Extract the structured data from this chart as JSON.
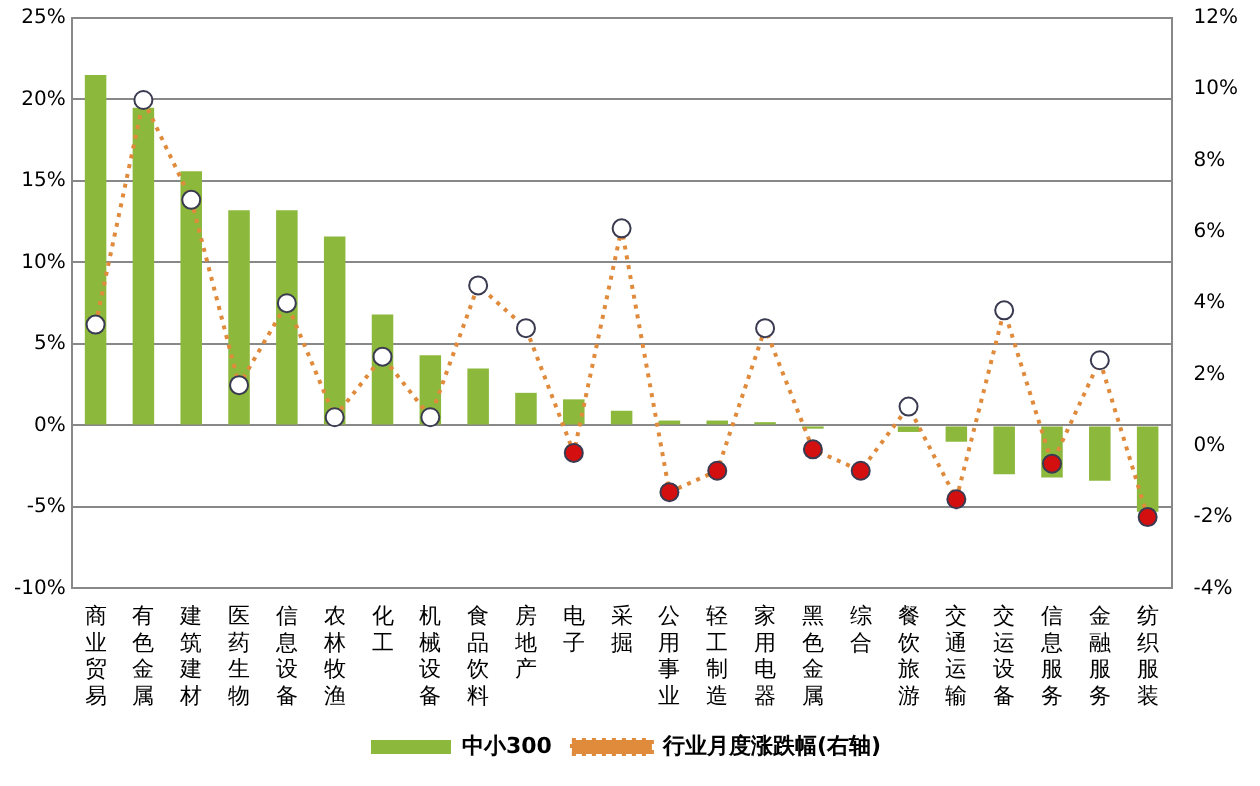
{
  "chart_data": {
    "type": "bar",
    "categories": [
      "商业贸易",
      "有色金属",
      "建筑建材",
      "医药生物",
      "信息设备",
      "农林牧渔",
      "化工",
      "机械设备",
      "食品饮料",
      "房地产",
      "电子",
      "采掘",
      "公用事业",
      "轻工制造",
      "家用电器",
      "黑色金属",
      "综合",
      "餐饮旅游",
      "交通运输",
      "交运设备",
      "信息服务",
      "金融服务",
      "纺织服装"
    ],
    "series": [
      {
        "name": "中小300",
        "color": "#8cb83c",
        "values": [
          21.5,
          19.5,
          15.6,
          13.2,
          13.2,
          11.6,
          6.8,
          4.3,
          3.5,
          2.0,
          1.6,
          0.9,
          0.3,
          0.3,
          0.2,
          -0.2,
          0,
          -0.4,
          -1.0,
          -3.0,
          -3.2,
          -3.4,
          -5.3
        ]
      },
      {
        "name": "行业月度涨跌幅(右轴)",
        "type": "line",
        "axis": "y2",
        "color": "#e08a3c",
        "line_style": "dotted",
        "marker": "circle",
        "colors": [
          "#ffffff",
          "#ffffff",
          "#ffffff",
          "#ffffff",
          "#ffffff",
          "#ffffff",
          "#ffffff",
          "#ffffff",
          "#ffffff",
          "#ffffff",
          "#d40f0f",
          "#ffffff",
          "#d40f0f",
          "#d40f0f",
          "#ffffff",
          "#d40f0f",
          "#d40f0f",
          "#ffffff",
          "#d40f0f",
          "#ffffff",
          "#d40f0f",
          "#ffffff",
          "#d40f0f"
        ],
        "values": [
          3.4,
          9.7,
          6.9,
          1.7,
          4.0,
          0.8,
          2.5,
          0.8,
          4.5,
          3.3,
          -0.2,
          6.1,
          -1.3,
          -0.7,
          3.3,
          -0.1,
          -0.7,
          1.1,
          -1.5,
          3.8,
          -0.5,
          2.4,
          -2.0
        ]
      }
    ],
    "ylim": [
      -10,
      25
    ],
    "yticks": [
      {
        "value": -10,
        "label": "-10%"
      },
      {
        "value": -5,
        "label": "-5%"
      },
      {
        "value": 0,
        "label": "0%"
      },
      {
        "value": 5,
        "label": "5%"
      },
      {
        "value": 10,
        "label": "10%"
      },
      {
        "value": 15,
        "label": "15%"
      },
      {
        "value": 20,
        "label": "20%"
      },
      {
        "value": 25,
        "label": "25%"
      }
    ],
    "y2lim": [
      -4,
      12
    ],
    "y2ticks": [
      {
        "value": -4,
        "label": "-4%"
      },
      {
        "value": -2,
        "label": "-2%"
      },
      {
        "value": 0,
        "label": "0%"
      },
      {
        "value": 2,
        "label": "2%"
      },
      {
        "value": 4,
        "label": "4%"
      },
      {
        "value": 6,
        "label": "6%"
      },
      {
        "value": 8,
        "label": "8%"
      },
      {
        "value": 10,
        "label": "10%"
      },
      {
        "value": 12,
        "label": "12%"
      }
    ],
    "grid": "y",
    "legend": "bottom"
  }
}
